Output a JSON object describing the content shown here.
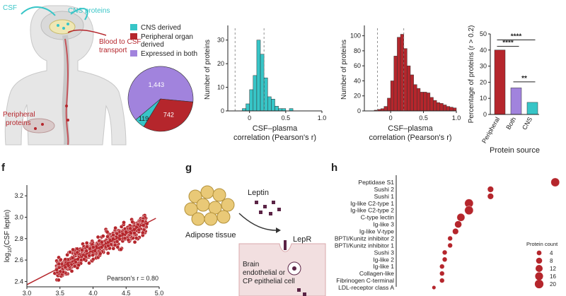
{
  "panel_letters": {
    "f": "f",
    "g": "g",
    "h": "h"
  },
  "anatomy": {
    "csf": "CSF",
    "cns_proteins": "CNS proteins",
    "blood_to_csf_line1": "Blood to CSF",
    "blood_to_csf_line2": "transport",
    "peripheral_line1": "Peripheral",
    "peripheral_line2": "proteins"
  },
  "colors": {
    "cns": "#37c5c7",
    "peripheral": "#b5262c",
    "both": "#a183dd",
    "axis": "#222222",
    "dashed": "#777777"
  },
  "legend": {
    "cns": "CNS derived",
    "peripheral_line1": "Peripheral organ",
    "peripheral_line2": "derived",
    "both": "Expressed in both"
  },
  "chart_data": [
    {
      "id": "pie",
      "type": "pie",
      "labels": [
        "Expressed in both",
        "Peripheral organ derived",
        "CNS derived"
      ],
      "values": [
        1443,
        742,
        119
      ],
      "value_labels": [
        "1,443",
        "742",
        "119"
      ]
    },
    {
      "id": "hist_cns",
      "type": "bar",
      "xlabel_line1": "CSF–plasma",
      "xlabel_line2": "correlation (Pearson's r)",
      "ylabel": "Number of proteins",
      "xlim": [
        -0.3,
        1.0
      ],
      "ylim": [
        0,
        35
      ],
      "xticks": [
        "0",
        "0.5",
        "1.0"
      ],
      "yticks": [
        "0",
        "10",
        "20",
        "30"
      ],
      "dashed_lines_x": [
        -0.2,
        0.2
      ],
      "bin_width": 0.05,
      "bin_start": -0.25,
      "values": [
        0,
        0,
        0,
        1,
        3,
        9,
        15,
        30,
        24,
        14,
        6,
        5,
        2,
        1,
        1,
        0,
        1
      ]
    },
    {
      "id": "hist_peripheral",
      "type": "bar",
      "xlabel_line1": "CSF–plasma",
      "xlabel_line2": "correlation (Pearson's r)",
      "ylabel": "Number of proteins",
      "xlim": [
        -0.4,
        1.0
      ],
      "ylim": [
        0,
        110
      ],
      "xticks": [
        "0",
        "0.5",
        "1.0"
      ],
      "yticks": [
        "0",
        "20",
        "40",
        "60",
        "80",
        "100"
      ],
      "dashed_lines_x": [
        -0.2,
        0.2
      ],
      "bin_width": 0.05,
      "bin_start": -0.25,
      "values": [
        1,
        2,
        3,
        6,
        17,
        40,
        73,
        98,
        102,
        83,
        60,
        48,
        35,
        30,
        25,
        25,
        24,
        18,
        14,
        11,
        10,
        8,
        6,
        5,
        4
      ]
    },
    {
      "id": "bar_source",
      "type": "bar",
      "categories": [
        "Peripheral",
        "Both",
        "CNS"
      ],
      "values": [
        40,
        16.5,
        7.5
      ],
      "ylabel": "Percentage of proteins (r > 0.2)",
      "xlabel": "Protein source",
      "ylim": [
        0,
        50
      ],
      "yticks": [
        "0",
        "10",
        "20",
        "30",
        "40",
        "50"
      ],
      "significance": [
        "****",
        "****",
        "**"
      ]
    },
    {
      "id": "scatter_leptin",
      "type": "scatter",
      "ylabel_main": "log",
      "ylabel_sub": "10",
      "ylabel_rest": "(CSF leptin)",
      "xlim": [
        3.0,
        5.0
      ],
      "ylim": [
        2.35,
        3.3
      ],
      "xticks": [
        "3.0",
        "3.5",
        "4.0",
        "4.5",
        "5.0"
      ],
      "yticks": [
        "2.4",
        "2.6",
        "2.8",
        "3.0",
        "3.2"
      ],
      "fit_line": [
        [
          3.0,
          2.37
        ],
        [
          4.95,
          2.99
        ]
      ],
      "annotation": "Pearson's r = 0.80"
    },
    {
      "id": "dot_domains",
      "type": "scatter",
      "categories": [
        "Peptidase S1",
        "Sushi 2",
        "Sushi 1",
        "Ig-like C2-type 1",
        "Ig-like C2-type 2",
        "C-type lectin",
        "Ig-like 3",
        "Ig-like V-type",
        "BPTI/Kunitz inhibitor 2",
        "BPTI/Kunitz inhibitor 1",
        "Sushi 3",
        "Ig-like 2",
        "Ig-like 1",
        "Collagen-like",
        "Fibrinogen C-terminal",
        "LDL-receptor class A"
      ],
      "x": [
        5.9,
        3.5,
        3.5,
        2.7,
        2.7,
        2.4,
        2.3,
        2.2,
        2.0,
        2.0,
        1.8,
        1.8,
        1.7,
        1.7,
        1.7,
        1.4
      ],
      "counts": [
        20,
        8,
        8,
        20,
        20,
        16,
        12,
        8,
        4,
        4,
        4,
        4,
        4,
        4,
        4,
        2
      ],
      "legend_title": "Protein count",
      "legend_values": [
        "4",
        "8",
        "12",
        "16",
        "20"
      ]
    }
  ],
  "diagram_g": {
    "leptin": "Leptin",
    "adipose": "Adipose tissue",
    "lepr": "LepR",
    "brain_line1": "Brain",
    "brain_line2": "endothelial or",
    "brain_line3": "CP epithelial cell"
  }
}
